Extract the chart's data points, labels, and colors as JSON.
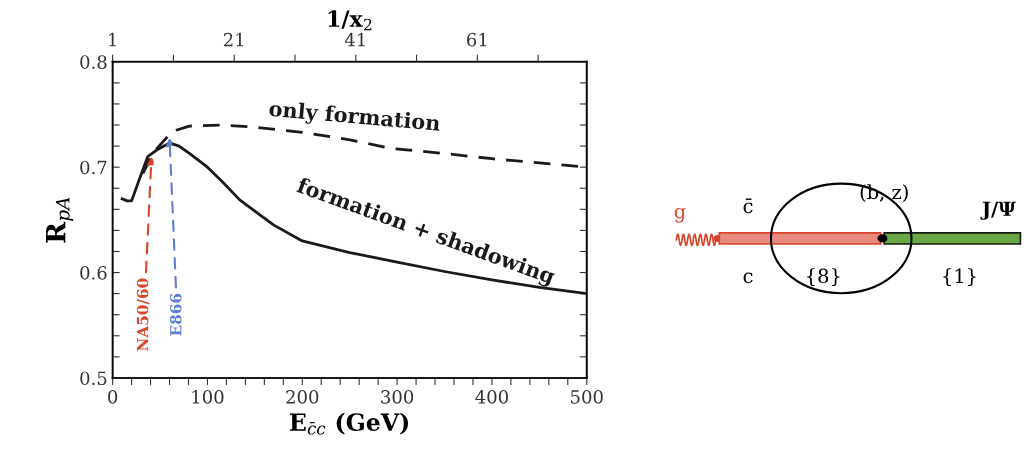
{
  "chart_data": {
    "type": "line",
    "xlabel": "E$_{c̄c}$ (GeV)",
    "ylabel": "R$_{pA}$",
    "x2label": "1/x$_{2}$",
    "series": [
      {
        "name": "formation + shadowing",
        "color": "#1a1a1a",
        "line_style": "solid",
        "x": [
          10,
          15,
          20,
          28,
          37,
          46,
          60,
          70,
          81,
          100,
          116,
          134,
          170,
          200,
          250,
          300,
          350,
          400,
          450,
          500
        ],
        "values": [
          0.67,
          0.668,
          0.668,
          0.688,
          0.71,
          0.716,
          0.723,
          0.72,
          0.713,
          0.7,
          0.686,
          0.669,
          0.645,
          0.63,
          0.619,
          0.61,
          0.601,
          0.593,
          0.586,
          0.58
        ]
      },
      {
        "name": "only formation",
        "color": "#1a1a1a",
        "line_style": "dashed",
        "x": [
          32,
          42,
          63,
          81,
          116,
          150,
          200,
          250,
          292,
          350,
          400,
          450,
          500
        ],
        "values": [
          0.694,
          0.713,
          0.734,
          0.739,
          0.74,
          0.738,
          0.733,
          0.726,
          0.718,
          0.713,
          0.708,
          0.704,
          0.7
        ]
      }
    ],
    "xlim": [
      0,
      500
    ],
    "xticks": [
      0,
      {
        "value": 20,
        "label": null
      },
      {
        "value": 40,
        "label": null
      },
      {
        "value": 60,
        "label": null
      },
      {
        "value": 80,
        "label": null
      },
      100,
      {
        "value": 120,
        "label": null
      },
      {
        "value": 140,
        "label": null
      },
      {
        "value": 160,
        "label": null
      },
      {
        "value": 180,
        "label": null
      },
      200,
      {
        "value": 220,
        "label": null
      },
      {
        "value": 240,
        "label": null
      },
      {
        "value": 260,
        "label": null
      },
      {
        "value": 280,
        "label": null
      },
      300,
      {
        "value": 320,
        "label": null
      },
      {
        "value": 340,
        "label": null
      },
      {
        "value": 360,
        "label": null
      },
      {
        "value": 380,
        "label": null
      },
      400,
      {
        "value": 420,
        "label": null
      },
      {
        "value": 440,
        "label": null
      },
      {
        "value": 460,
        "label": null
      },
      {
        "value": 480,
        "label": null
      },
      500
    ],
    "ylim": [
      0.5,
      0.8
    ],
    "yticks": [
      0.5,
      {
        "value": 0.52,
        "label": null
      },
      {
        "value": 0.54,
        "label": null
      },
      {
        "value": 0.56,
        "label": null
      },
      {
        "value": 0.58,
        "label": null
      },
      0.6,
      {
        "value": 0.62,
        "label": null
      },
      {
        "value": 0.64,
        "label": null
      },
      {
        "value": 0.66,
        "label": null
      },
      {
        "value": 0.68,
        "label": null
      },
      0.7,
      {
        "value": 0.72,
        "label": null
      },
      {
        "value": 0.74,
        "label": null
      },
      {
        "value": 0.76,
        "label": null
      },
      {
        "value": 0.78,
        "label": null
      },
      0.8
    ],
    "x2lim": [
      1,
      79
    ],
    "x2ticks": [
      1,
      {
        "value": 11,
        "label": null
      },
      21,
      {
        "value": 31,
        "label": null
      },
      41,
      {
        "value": 51,
        "label": null
      },
      61,
      {
        "value": 71,
        "label": null
      }
    ],
    "annotations": [
      {
        "text": "NA50/60",
        "x": 41,
        "y": 0.71
      },
      {
        "text": "E866",
        "x": 60,
        "y": 0.728
      },
      "g",
      "c̄",
      "c",
      "(b, z)",
      "{8}",
      "J/Ψ",
      "{1}"
    ],
    "grid": false,
    "legend": false
  }
}
